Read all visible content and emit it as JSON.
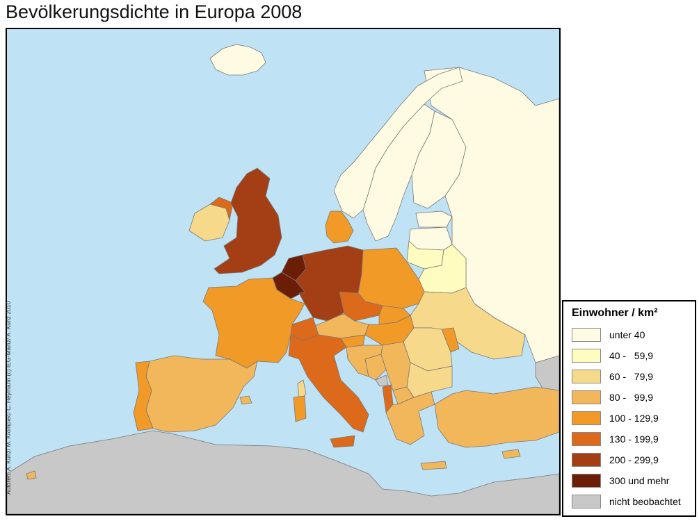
{
  "title": "Bevölkerungsdichte in Europa 2008",
  "credit": "Autoren: A. Kunz/ M. Krompiec/ C. Heymann (c) IEG-Mainz/ A. Kunz 2010",
  "colors": {
    "sea": "#bfe3f5",
    "unobserved": "#c8c8c8",
    "border": "#777777"
  },
  "legend": {
    "title": "Einwohner / km²",
    "items": [
      {
        "label": "unter 40",
        "color": "#fffbe2"
      },
      {
        "label": "40 -   59,9",
        "color": "#fffcc0"
      },
      {
        "label": "60 -   79,9",
        "color": "#f6d98a"
      },
      {
        "label": "80 -   99,9",
        "color": "#f2b75b"
      },
      {
        "label": "100 - 129,9",
        "color": "#f19a28"
      },
      {
        "label": "130 - 199,9",
        "color": "#dc6a1a"
      },
      {
        "label": "200 - 299,9",
        "color": "#a43e15"
      },
      {
        "label": "300 und mehr",
        "color": "#6b1e05"
      },
      {
        "label": "nicht beobachtet",
        "color": "#c8c8c8"
      }
    ]
  },
  "regions": [
    {
      "name": "iceland",
      "class": 0
    },
    {
      "name": "norway",
      "class": 0
    },
    {
      "name": "sweden",
      "class": 0
    },
    {
      "name": "finland",
      "class": 0
    },
    {
      "name": "russia",
      "class": 0
    },
    {
      "name": "estonia",
      "class": 0
    },
    {
      "name": "latvia",
      "class": 0
    },
    {
      "name": "lithuania",
      "class": 1
    },
    {
      "name": "belarus",
      "class": 1
    },
    {
      "name": "ireland",
      "class": 2
    },
    {
      "name": "northern-ireland",
      "class": 5
    },
    {
      "name": "great-britain",
      "class": 6
    },
    {
      "name": "denmark",
      "class": 4
    },
    {
      "name": "netherlands",
      "class": 7
    },
    {
      "name": "belgium",
      "class": 7
    },
    {
      "name": "germany",
      "class": 6
    },
    {
      "name": "poland",
      "class": 4
    },
    {
      "name": "czech-republic",
      "class": 5
    },
    {
      "name": "slovakia",
      "class": 4
    },
    {
      "name": "austria",
      "class": 3
    },
    {
      "name": "switzerland",
      "class": 5
    },
    {
      "name": "hungary",
      "class": 4
    },
    {
      "name": "slovenia",
      "class": 4
    },
    {
      "name": "france",
      "class": 4
    },
    {
      "name": "spain",
      "class": 3
    },
    {
      "name": "portugal",
      "class": 4
    },
    {
      "name": "italy",
      "class": 5
    },
    {
      "name": "corsica",
      "class": 2
    },
    {
      "name": "sardinia",
      "class": 4
    },
    {
      "name": "sicily",
      "class": 5
    },
    {
      "name": "ukraine",
      "class": 2
    },
    {
      "name": "moldova",
      "class": 4
    },
    {
      "name": "romania",
      "class": 2
    },
    {
      "name": "bulgaria",
      "class": 2
    },
    {
      "name": "croatia",
      "class": 3
    },
    {
      "name": "bosnia",
      "class": 3
    },
    {
      "name": "serbia",
      "class": 3
    },
    {
      "name": "montenegro",
      "class": 8
    },
    {
      "name": "albania",
      "class": 5
    },
    {
      "name": "macedonia",
      "class": 3
    },
    {
      "name": "greece",
      "class": 3
    },
    {
      "name": "crete",
      "class": 3
    },
    {
      "name": "cyprus",
      "class": 3
    },
    {
      "name": "turkey",
      "class": 3
    },
    {
      "name": "balearics",
      "class": 3
    },
    {
      "name": "canaries",
      "class": 3
    },
    {
      "name": "north-africa",
      "class": 8
    },
    {
      "name": "caucasus",
      "class": 8
    },
    {
      "name": "svalbard-island",
      "class": 8
    }
  ]
}
